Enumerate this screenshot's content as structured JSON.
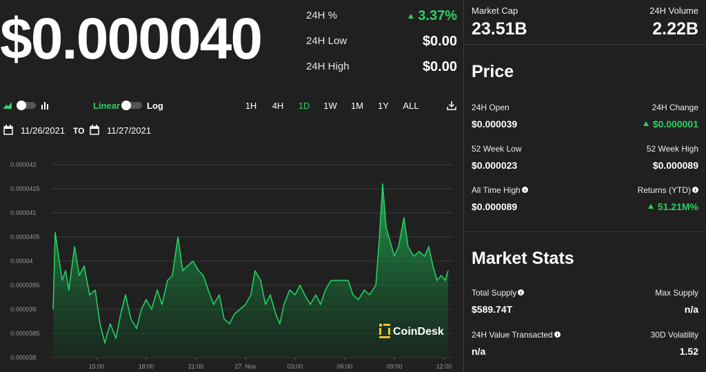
{
  "price": {
    "value": "$0.000040",
    "change_label": "24H %",
    "change": "3.37%",
    "change_trend": "up",
    "low_label": "24H Low",
    "low": "$0.00",
    "high_label": "24H High",
    "high": "$0.00"
  },
  "controls": {
    "linear": "Linear",
    "log": "Log",
    "ranges": [
      "1H",
      "4H",
      "1D",
      "1W",
      "1M",
      "1Y",
      "ALL"
    ],
    "from": "11/26/2021",
    "to_label": "TO",
    "to": "11/27/2021"
  },
  "summary": {
    "market_cap_label": "Market Cap",
    "market_cap": "23.51B",
    "volume_label": "24H Volume",
    "volume": "2.22B"
  },
  "price_section": {
    "title": "Price",
    "items": [
      {
        "label": "24H Open",
        "value": "$0.000039"
      },
      {
        "label": "24H Change",
        "value": "$0.000001",
        "trend": "up"
      },
      {
        "label": "52 Week Low",
        "value": "$0.000023"
      },
      {
        "label": "52 Week High",
        "value": "$0.000089"
      },
      {
        "label": "All Time High",
        "value": "$0.000089",
        "info": true
      },
      {
        "label": "Returns (YTD)",
        "value": "51.21M%",
        "trend": "up",
        "info": true
      }
    ]
  },
  "market_stats": {
    "title": "Market Stats",
    "items": [
      {
        "label": "Total Supply",
        "value": "$589.74T",
        "info": true
      },
      {
        "label": "Max Supply",
        "value": "n/a"
      },
      {
        "label": "24H Value Transacted",
        "value": "n/a",
        "info": true
      },
      {
        "label": "30D Volatility",
        "value": "1.52"
      }
    ]
  },
  "chart_data": {
    "type": "line",
    "color": "#22d160",
    "fill": true,
    "grid": true,
    "x": [
      0.38,
      0.5,
      0.71,
      0.92,
      1.13,
      1.33,
      1.67,
      1.96,
      2.25,
      2.58,
      2.92,
      3.21,
      3.5,
      3.83,
      4.17,
      4.46,
      4.75,
      5.08,
      5.42,
      5.71,
      6,
      6.33,
      6.67,
      6.96,
      7.29,
      7.58,
      7.92,
      8.21,
      8.5,
      8.83,
      9.17,
      9.46,
      9.75,
      10.08,
      10.42,
      10.71,
      11.04,
      11.33,
      11.67,
      12,
      12.33,
      12.58,
      12.92,
      13.21,
      13.5,
      13.83,
      14.08,
      14.33,
      14.67,
      15,
      15.29,
      15.58,
      15.92,
      16.25,
      16.54,
      16.83,
      17.17,
      17.5,
      17.79,
      18.21,
      18.5,
      18.83,
      19.17,
      19.5,
      19.88,
      20.08,
      20.29,
      20.5,
      20.75,
      21,
      21.25,
      21.58,
      21.83,
      22.17,
      22.5,
      22.83,
      23.08,
      23.33,
      23.58,
      23.83,
      24.08,
      24.25
    ],
    "values": [
      3.9e-05,
      4.06e-05,
      4.01e-05,
      3.96e-05,
      3.98e-05,
      3.94e-05,
      4.03e-05,
      3.97e-05,
      3.99e-05,
      3.93e-05,
      3.94e-05,
      3.87e-05,
      3.83e-05,
      3.87e-05,
      3.84e-05,
      3.89e-05,
      3.93e-05,
      3.88e-05,
      3.86e-05,
      3.9e-05,
      3.92e-05,
      3.9e-05,
      3.94e-05,
      3.91e-05,
      3.96e-05,
      3.97e-05,
      4.05e-05,
      3.98e-05,
      3.99e-05,
      4e-05,
      3.98e-05,
      3.97e-05,
      3.94e-05,
      3.91e-05,
      3.93e-05,
      3.88e-05,
      3.87e-05,
      3.89e-05,
      3.9e-05,
      3.91e-05,
      3.93e-05,
      3.98e-05,
      3.96e-05,
      3.91e-05,
      3.93e-05,
      3.89e-05,
      3.87e-05,
      3.91e-05,
      3.94e-05,
      3.93e-05,
      3.95e-05,
      3.93e-05,
      3.91e-05,
      3.93e-05,
      3.91e-05,
      3.94e-05,
      3.96e-05,
      3.96e-05,
      3.96e-05,
      3.96e-05,
      3.93e-05,
      3.92e-05,
      3.94e-05,
      3.93e-05,
      3.95e-05,
      4.04e-05,
      4.16e-05,
      4.07e-05,
      4.04e-05,
      4.01e-05,
      4.03e-05,
      4.09e-05,
      4.03e-05,
      4.01e-05,
      4.02e-05,
      4.01e-05,
      4.03e-05,
      3.99e-05,
      3.96e-05,
      3.97e-05,
      3.96e-05,
      3.98e-05
    ],
    "xlim": [
      0.3,
      24.5
    ],
    "xticks": [
      {
        "value": 3,
        "label": "15:00"
      },
      {
        "value": 6,
        "label": "18:00"
      },
      {
        "value": 9,
        "label": "21:00"
      },
      {
        "value": 12,
        "label": "27. Nov"
      },
      {
        "value": 15,
        "label": "03:00"
      },
      {
        "value": 18,
        "label": "06:00"
      },
      {
        "value": 21,
        "label": "09:00"
      },
      {
        "value": 24,
        "label": "12:00"
      }
    ],
    "ylim": [
      3.8e-05,
      4.2e-05
    ],
    "yticks": [
      3.8e-05,
      3.85e-05,
      3.9e-05,
      3.95e-05,
      4e-05,
      4.05e-05,
      4.1e-05,
      4.15e-05,
      4.2e-05
    ]
  },
  "watermark": "CoinDesk"
}
